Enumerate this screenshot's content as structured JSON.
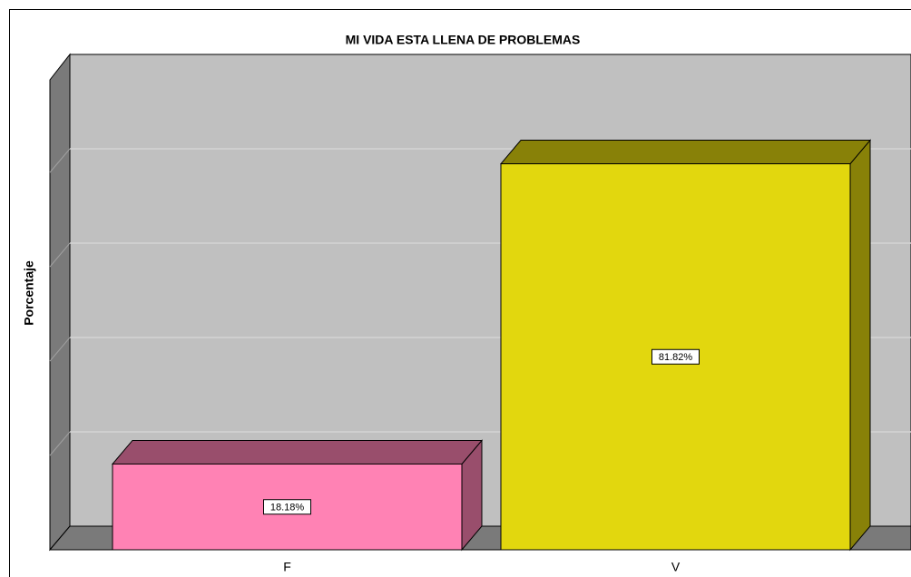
{
  "chart_data": {
    "type": "bar3d",
    "title": "MI VIDA ESTA LLENA DE PROBLEMAS",
    "y_label": "Porcentaje",
    "categories": [
      "F",
      "V"
    ],
    "values": [
      18.18,
      81.82
    ],
    "value_labels": [
      "18.18%",
      "81.82%"
    ],
    "colors": [
      "#ff82b4",
      "#e2d70e"
    ],
    "ylim": [
      0,
      100
    ],
    "yticks": [
      0,
      20,
      40,
      60,
      80,
      100
    ],
    "grid": true
  }
}
